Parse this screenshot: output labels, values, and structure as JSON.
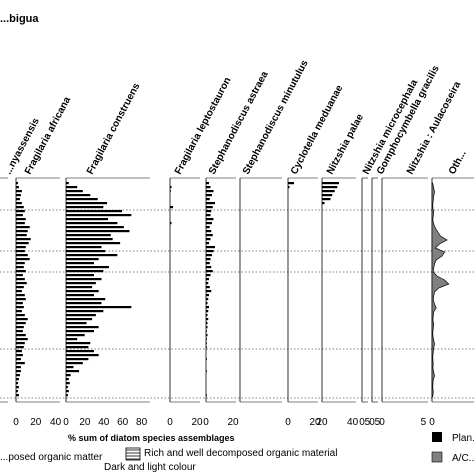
{
  "chart_data": {
    "type": "bar",
    "title": "",
    "xlabel": "% sum of diatom species assemblages",
    "panels": [
      {
        "name": "...nyassensis",
        "ticks": [
          "0"
        ],
        "max": 20,
        "values": [
          0,
          0,
          0,
          0,
          0,
          0,
          0,
          0,
          0,
          0,
          0,
          0,
          0,
          0,
          0,
          0,
          0,
          0,
          0,
          0,
          0,
          0,
          0,
          0,
          0,
          0,
          0,
          0,
          0,
          0,
          0,
          0,
          0,
          3,
          0,
          2,
          0,
          0,
          3,
          0,
          0,
          0,
          0,
          0,
          2,
          0,
          0,
          0,
          4,
          0,
          0,
          3,
          0,
          0
        ]
      },
      {
        "name": "Fragilaria africana",
        "ticks": [
          "0",
          "20",
          "40"
        ],
        "max": 45,
        "values": [
          2,
          3,
          6,
          5,
          4,
          6,
          8,
          9,
          7,
          10,
          9,
          14,
          12,
          11,
          15,
          13,
          10,
          9,
          12,
          14,
          9,
          8,
          10,
          7,
          9,
          11,
          8,
          6,
          9,
          10,
          7,
          8,
          6,
          9,
          12,
          10,
          8,
          7,
          10,
          12,
          9,
          8,
          6,
          7,
          5,
          9,
          5,
          5,
          4,
          3,
          2,
          3,
          2,
          3
        ]
      },
      {
        "name": "Fragilaria construens",
        "ticks": [
          "0",
          "20",
          "40",
          "60",
          "80"
        ],
        "max": 90,
        "values": [
          3,
          12,
          18,
          26,
          34,
          44,
          40,
          60,
          70,
          45,
          55,
          62,
          68,
          48,
          50,
          58,
          38,
          42,
          55,
          35,
          30,
          46,
          40,
          30,
          38,
          32,
          28,
          35,
          30,
          42,
          38,
          70,
          40,
          32,
          28,
          22,
          35,
          30,
          20,
          12,
          26,
          24,
          30,
          35,
          24,
          18,
          8,
          14,
          5,
          3,
          4,
          2,
          3,
          2
        ]
      },
      {
        "name": "Fragilaria leptostauron",
        "ticks": [
          "0",
          "20"
        ],
        "max": 40,
        "values": [
          0,
          2,
          1,
          0,
          0,
          0,
          4,
          0,
          0,
          0,
          2,
          0,
          0,
          0,
          0,
          0,
          0,
          0,
          0,
          0,
          0,
          0,
          0,
          0,
          0,
          0,
          0,
          0,
          0,
          0,
          0,
          0,
          0,
          0,
          0,
          0,
          0,
          0,
          0,
          0,
          0,
          0,
          0,
          0,
          0,
          0,
          0,
          0,
          0,
          0,
          0,
          0,
          0,
          0
        ]
      },
      {
        "name": "Stephanodiscus astraea",
        "ticks": [
          "0",
          "20"
        ],
        "max": 40,
        "values": [
          4,
          6,
          10,
          8,
          5,
          12,
          9,
          7,
          6,
          10,
          8,
          5,
          7,
          9,
          6,
          4,
          12,
          10,
          8,
          6,
          5,
          7,
          9,
          6,
          4,
          3,
          5,
          7,
          4,
          3,
          2,
          4,
          3,
          2,
          3,
          2,
          2,
          1,
          2,
          1,
          1,
          1,
          0,
          0,
          1,
          0,
          0,
          1,
          0,
          0,
          0,
          0,
          0,
          1
        ]
      },
      {
        "name": "Stephanodiscus minutulus",
        "ticks": [],
        "max": 20,
        "values": [
          0,
          0,
          0,
          0,
          0,
          0,
          0,
          0,
          0,
          0,
          0,
          0,
          0,
          0,
          0,
          0,
          0,
          0,
          0,
          0,
          0,
          0,
          0,
          0,
          0,
          0,
          0,
          0,
          0,
          0,
          0,
          0,
          0,
          0,
          0,
          0,
          0,
          0,
          0,
          0,
          0,
          0,
          0,
          0,
          0,
          0,
          0,
          0,
          0,
          0,
          0,
          0,
          0,
          0
        ]
      },
      {
        "name": "Cyclotella meduanae",
        "ticks": [
          "0",
          "20"
        ],
        "max": 40,
        "values": [
          8,
          2,
          0,
          0,
          0,
          0,
          0,
          0,
          0,
          0,
          0,
          0,
          0,
          0,
          0,
          0,
          0,
          0,
          0,
          0,
          0,
          0,
          0,
          0,
          0,
          0,
          0,
          0,
          0,
          0,
          0,
          0,
          0,
          0,
          0,
          0,
          0,
          0,
          0,
          0,
          0,
          0,
          0,
          0,
          0,
          0,
          0,
          0,
          0,
          0,
          0,
          0,
          0,
          0
        ]
      },
      {
        "name": "Nitzshia palae",
        "ticks": [
          "20",
          "40"
        ],
        "max": 40,
        "values": [
          20,
          18,
          15,
          12,
          10,
          3,
          0,
          0,
          0,
          0,
          0,
          0,
          0,
          0,
          0,
          0,
          0,
          0,
          0,
          0,
          0,
          0,
          0,
          0,
          0,
          0,
          0,
          0,
          0,
          0,
          0,
          0,
          0,
          0,
          0,
          0,
          0,
          0,
          0,
          0,
          0,
          0,
          0,
          0,
          0,
          0,
          0,
          0,
          0,
          0,
          0,
          0,
          0,
          0
        ]
      },
      {
        "name": "Nitzshia microcephala",
        "ticks": [
          "0",
          "5"
        ],
        "max": 5,
        "values": [
          0,
          0,
          0,
          0,
          0,
          0,
          0,
          0,
          0,
          0,
          0,
          0,
          0,
          0,
          0,
          0,
          0,
          0,
          0,
          0,
          0,
          0,
          0,
          0,
          0,
          0,
          0,
          0,
          0,
          0,
          0,
          0,
          0,
          0,
          0,
          0,
          0,
          0,
          0,
          0,
          0,
          0,
          0,
          0,
          0,
          0,
          0,
          0,
          0,
          0,
          0,
          0,
          0,
          0
        ]
      },
      {
        "name": "Gomphocymbella gracilis",
        "ticks": [
          "0",
          "5"
        ],
        "max": 5,
        "values": [
          0,
          0,
          0,
          0,
          0,
          0,
          0,
          0,
          0,
          0,
          0,
          0,
          0,
          0,
          0,
          0,
          0,
          0,
          0,
          0,
          0,
          0,
          0,
          0,
          0,
          0,
          0,
          0,
          0,
          0,
          0,
          0,
          0,
          0,
          0,
          0,
          0,
          0,
          0,
          0,
          0,
          0,
          0,
          0,
          0,
          0,
          0,
          0,
          0,
          0,
          0,
          0,
          0,
          0
        ]
      },
      {
        "name": "Nitzshia : Aulacoseira",
        "ticks": [
          "0",
          "5"
        ],
        "max": 5,
        "values": [
          0,
          0,
          0,
          0,
          0,
          0,
          0,
          0,
          0,
          0,
          0,
          0,
          0,
          0,
          0,
          0,
          0,
          0,
          0,
          0,
          0,
          0,
          0,
          0,
          0,
          0,
          0,
          0,
          0,
          0,
          0,
          0,
          0,
          0,
          0,
          0,
          0,
          0,
          0,
          0,
          0,
          0,
          0,
          0,
          0,
          0,
          0,
          0,
          0,
          0,
          0,
          0,
          0,
          0
        ]
      },
      {
        "name": "Oth...",
        "ticks": [
          "0"
        ],
        "max": 100,
        "values": [
          2,
          4,
          6,
          4,
          3,
          2,
          2,
          4,
          3,
          2,
          4,
          8,
          14,
          20,
          36,
          18,
          8,
          30,
          24,
          10,
          6,
          4,
          3,
          12,
          30,
          40,
          16,
          6,
          4,
          3,
          6,
          10,
          4,
          3,
          2,
          4,
          3,
          2,
          2,
          4,
          6,
          4,
          3,
          2,
          2,
          3,
          2,
          4,
          6,
          3,
          2,
          2,
          3,
          2
        ]
      }
    ],
    "top_label": "...bigua",
    "legend": [
      {
        "label": "...posed organic matter"
      },
      {
        "label": "Rich and well decomposed organic material"
      },
      {
        "label": "Dark and light colour"
      },
      {
        "label": "Plan..."
      },
      {
        "label": "A/C..."
      }
    ],
    "colors": {
      "bar": "#000000",
      "fill": "#808080",
      "line": "#555555"
    }
  }
}
